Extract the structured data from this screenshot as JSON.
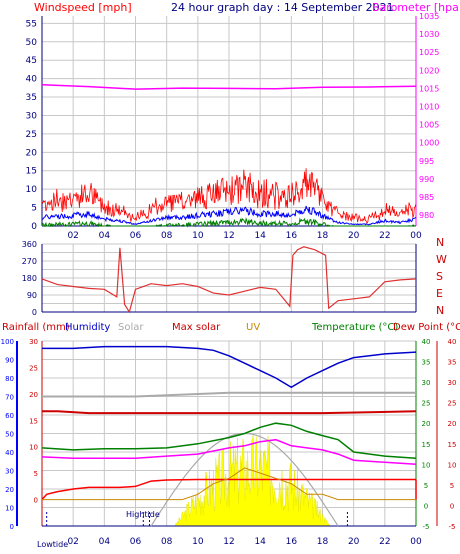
{
  "colors": {
    "wind": "#ff0000",
    "gust": "#ff0000",
    "avg_wind": "#0000ff",
    "wind_green": "#008000",
    "barometer": "#ff00ff",
    "direction": "#e03030",
    "rain": "#ff0000",
    "humidity": "#0000cc",
    "solar": "#aaaaaa",
    "max_solar": "#cc0000",
    "uv": "#cc8800",
    "temperature": "#008000",
    "dew_point": "#cc0000",
    "solar_fill": "#ffff00",
    "grid": "#c8c8c8",
    "axis": "#000080"
  },
  "top": {
    "title": "24 hour graph day : 14 September 2021",
    "left_label": "Windspeed [mph]",
    "right_label": "Barometer [hpa]"
  },
  "mid": {
    "compass": [
      "N",
      "W",
      "S",
      "E",
      "N"
    ]
  },
  "bottom": {
    "labels": {
      "rain": "Rainfall (mm)",
      "humidity": "Humidity",
      "solar": "Solar",
      "max_solar": "Max solar",
      "uv": "UV",
      "temperature": "Temperature (°C)",
      "dew_point": "Dew Point (°C)"
    },
    "lowtide": "Lowtide",
    "hightide": "Hightide"
  },
  "chart_data": [
    {
      "type": "line",
      "title": "24 hour graph day : 14 September 2021",
      "xlabel": "",
      "ylabel": "Windspeed [mph]",
      "y2label": "Barometer [hpa]",
      "x_ticks": [
        "02",
        "04",
        "06",
        "08",
        "10",
        "12",
        "14",
        "16",
        "18",
        "20",
        "22",
        "00"
      ],
      "ylim": [
        0,
        57
      ],
      "y_ticks": [
        0,
        5,
        10,
        15,
        20,
        25,
        30,
        35,
        40,
        45,
        50,
        55
      ],
      "y2lim": [
        977,
        1035
      ],
      "y2_ticks": [
        980,
        985,
        990,
        995,
        1000,
        1005,
        1010,
        1015,
        1020,
        1025,
        1030,
        1035
      ],
      "grid": true,
      "series": [
        {
          "name": "Barometer [hpa]",
          "axis": "right",
          "x": [
            0,
            3,
            6,
            9,
            12,
            15,
            18,
            21,
            24
          ],
          "values": [
            1016.0,
            1015.5,
            1014.8,
            1015.1,
            1015.0,
            1014.9,
            1015.3,
            1015.4,
            1015.6
          ]
        },
        {
          "name": "Windspeed [mph]",
          "axis": "left",
          "x": [
            0,
            2,
            3,
            4,
            5,
            6,
            7,
            8,
            9,
            10,
            11,
            12,
            13,
            14,
            15,
            16,
            17,
            18,
            19,
            20,
            21,
            22,
            23,
            24
          ],
          "values": [
            5,
            6,
            7,
            4,
            3,
            1,
            3,
            5,
            5,
            6,
            7,
            8,
            9,
            7,
            7,
            6,
            10,
            6,
            2,
            1,
            1,
            3,
            2,
            4
          ]
        }
      ]
    },
    {
      "type": "line",
      "ylabel": "",
      "ylim": [
        0,
        360
      ],
      "y_ticks": [
        0,
        45,
        90,
        135,
        180,
        225,
        270,
        315,
        360
      ],
      "x_ticks": [
        "02",
        "04",
        "06",
        "08",
        "10",
        "12",
        "14",
        "16",
        "18",
        "20",
        "22",
        "00"
      ],
      "series": [
        {
          "name": "",
          "x": [
            0,
            1,
            2,
            3,
            4,
            4.8,
            5.0,
            5.3,
            5.6,
            6,
            7,
            8,
            9,
            10,
            11,
            12,
            13,
            14,
            15,
            15.9,
            16.1,
            16.4,
            16.8,
            17.5,
            18.2,
            18.4,
            19,
            20,
            21,
            22,
            23,
            24
          ],
          "values": [
            175,
            145,
            135,
            125,
            120,
            80,
            340,
            40,
            0,
            120,
            150,
            140,
            150,
            135,
            100,
            90,
            110,
            130,
            120,
            30,
            300,
            330,
            345,
            330,
            300,
            20,
            60,
            70,
            80,
            160,
            170,
            175
          ]
        }
      ]
    },
    {
      "type": "line",
      "ylim_left": [
        -5,
        30
      ],
      "y_ticks_left": [
        0,
        5,
        10,
        15,
        20,
        25,
        30
      ],
      "ylim_left2": [
        0,
        100
      ],
      "y_ticks_left2": [
        0,
        10,
        20,
        30,
        40,
        50,
        60,
        70,
        80,
        90,
        100
      ],
      "ylim_right": [
        -5,
        40
      ],
      "y_ticks_right": [
        -5,
        0,
        5,
        10,
        15,
        20,
        25,
        30,
        35,
        40
      ],
      "x_ticks": [
        "02",
        "04",
        "06",
        "08",
        "10",
        "12",
        "14",
        "16",
        "18",
        "20",
        "22",
        "00"
      ],
      "series": [
        {
          "name": "Humidity",
          "axis": "humidity",
          "x": [
            0,
            2,
            4,
            6,
            8,
            10,
            11,
            12,
            13,
            14,
            15,
            16,
            17,
            18,
            19,
            20,
            22,
            24
          ],
          "values": [
            96,
            96,
            97,
            97,
            97,
            96,
            95,
            92,
            88,
            84,
            80,
            75,
            80,
            84,
            88,
            91,
            93,
            94
          ]
        },
        {
          "name": "Solar",
          "axis": "humidity",
          "x": [
            0,
            6,
            12,
            18,
            24
          ],
          "values": [
            70,
            70,
            72,
            72,
            72
          ]
        },
        {
          "name": "Max solar",
          "axis": "humidity",
          "x": [
            0,
            1,
            3,
            6,
            12,
            18,
            24
          ],
          "values": [
            62,
            62,
            61,
            61,
            61,
            61,
            62
          ]
        },
        {
          "name": "Temperature (°C)",
          "axis": "temp",
          "x": [
            0,
            2,
            4,
            6,
            8,
            10,
            12,
            13,
            14,
            15,
            16,
            17,
            18,
            19,
            20,
            22,
            24
          ],
          "values": [
            14.0,
            13.5,
            13.8,
            13.8,
            14.0,
            15.0,
            16.5,
            17.5,
            19.0,
            20.0,
            19.5,
            18.0,
            17.0,
            16.0,
            13.0,
            12.0,
            11.5
          ]
        },
        {
          "name": "Dew Point (°C)",
          "axis": "temp",
          "x": [
            0,
            2,
            4,
            6,
            8,
            10,
            12,
            13,
            14,
            15,
            16,
            17,
            18,
            19,
            20,
            22,
            24
          ],
          "values": [
            11.8,
            11.5,
            11.5,
            11.5,
            12.0,
            12.5,
            14.0,
            14.5,
            15.5,
            16.0,
            14.5,
            14.0,
            13.5,
            12.5,
            11.0,
            10.5,
            10.0
          ]
        },
        {
          "name": "Rainfall (mm)",
          "axis": "rain",
          "x": [
            0,
            0.3,
            1,
            2,
            3,
            5,
            6,
            7,
            8,
            10,
            12,
            24
          ],
          "values": [
            0,
            1,
            1.5,
            2,
            2.3,
            2.3,
            2.5,
            3.5,
            3.7,
            3.8,
            3.8,
            3.8
          ]
        },
        {
          "name": "UV",
          "axis": "rain",
          "x": [
            0,
            9,
            10,
            11,
            12,
            13,
            14,
            15,
            16,
            17,
            18,
            19,
            24
          ],
          "values": [
            0,
            0,
            1,
            3,
            4,
            6,
            5,
            4,
            3,
            1,
            1,
            0,
            0
          ]
        }
      ]
    }
  ]
}
